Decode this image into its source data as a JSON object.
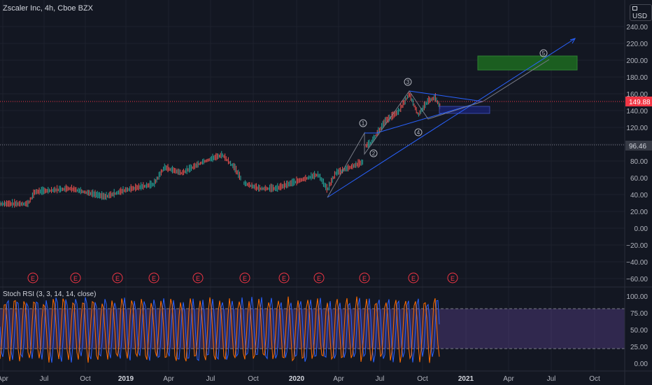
{
  "header": {
    "symbol": "Zscaler Inc, 4h, Cboe BZX",
    "currency": "USD"
  },
  "price_axis": {
    "ticks": [
      "240.00",
      "220.00",
      "200.00",
      "180.00",
      "160.00",
      "140.00",
      "120.00",
      "100.00",
      "80.00",
      "60.00",
      "40.00",
      "20.00",
      "0.00",
      "−20.00",
      "−40.00",
      "−60.00"
    ],
    "last_price": "149.88",
    "marker_price": "96.46",
    "last_price_color": "#f23645",
    "marker_color": "#363a45"
  },
  "time_axis": {
    "labels": [
      "Apr",
      "Jul",
      "Oct",
      "2019",
      "Apr",
      "Jul",
      "Oct",
      "2020",
      "Apr",
      "Jul",
      "Oct",
      "2021",
      "Apr",
      "Jul",
      "Oct"
    ]
  },
  "earnings": {
    "label": "E",
    "count": 11
  },
  "wave_labels": [
    "1",
    "2",
    "3",
    "4",
    "5"
  ],
  "rsi": {
    "title": "Stoch RSI (3, 3, 14, 14, close)",
    "ticks": [
      "100.00",
      "75.00",
      "50.00",
      "25.00",
      "0.00"
    ]
  },
  "colors": {
    "bg": "#131722",
    "grid": "#1e222d",
    "candle_up": "#26a69a",
    "candle_down": "#ef5350",
    "trend": "#2962ff",
    "rsi_k": "#2962ff",
    "rsi_d": "#ff6d00",
    "rsi_band": "#7e57c2",
    "target_box": "#1b5e20"
  }
}
